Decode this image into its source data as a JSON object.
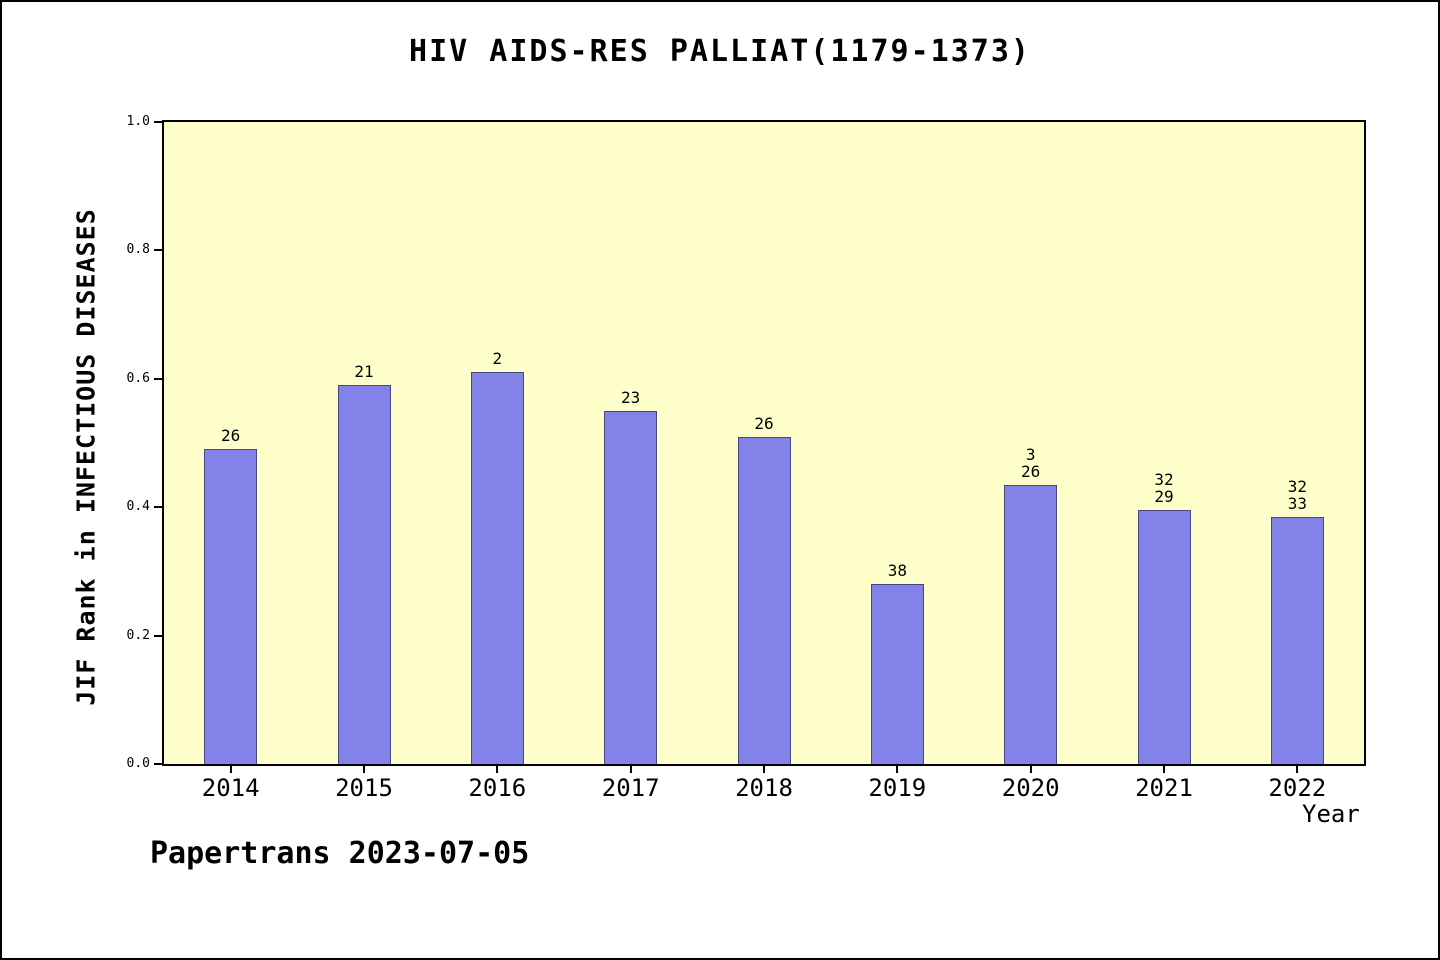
{
  "chart_data": {
    "type": "bar",
    "title": "HIV AIDS-RES PALLIAT(1179-1373)",
    "xlabel": "Year",
    "ylabel": "JIF Rank in INFECTIOUS DISEASES",
    "categories": [
      "2014",
      "2015",
      "2016",
      "2017",
      "2018",
      "2019",
      "2020",
      "2021",
      "2022"
    ],
    "values": [
      0.49,
      0.59,
      0.61,
      0.55,
      0.51,
      0.28,
      0.435,
      0.395,
      0.385
    ],
    "bar_labels": [
      [
        "26"
      ],
      [
        "21"
      ],
      [
        "2"
      ],
      [
        "23"
      ],
      [
        "26"
      ],
      [
        "38"
      ],
      [
        "3",
        "26"
      ],
      [
        "32",
        "29"
      ],
      [
        "32",
        "33"
      ]
    ],
    "ylim": [
      0.0,
      1.0
    ],
    "yticks": [
      "0.0",
      "0.2",
      "0.4",
      "0.6",
      "0.8",
      "1.0"
    ],
    "grid": false,
    "legend": "none",
    "colors": {
      "bar": "#8282e8",
      "plot_background": "#ffffcc",
      "axis": "#000000"
    }
  },
  "footer": {
    "text": "Papertrans 2023-07-05"
  }
}
